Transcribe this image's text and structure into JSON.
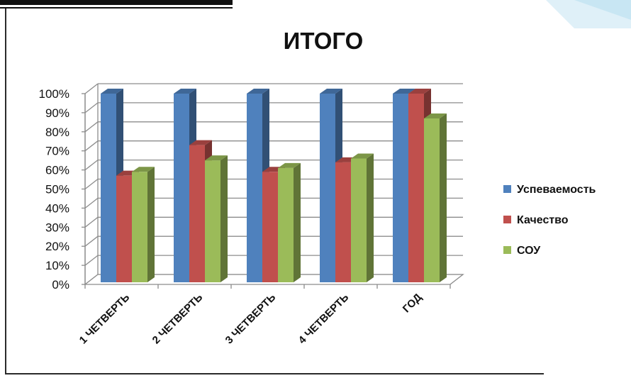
{
  "chart_data": {
    "type": "bar",
    "title": "ИТОГО",
    "categories": [
      "1 ЧЕТВЕРТЬ",
      "2 ЧЕТВЕРТЬ",
      "3 ЧЕТВЕРТЬ",
      "4 ЧЕТВЕРТЬ",
      "ГОД"
    ],
    "series": [
      {
        "name": "Успеваемость",
        "color": "#4F81BD",
        "values": [
          100,
          100,
          100,
          100,
          100
        ]
      },
      {
        "name": "Качество",
        "color": "#C0504D",
        "values": [
          57,
          73,
          59,
          64,
          100
        ]
      },
      {
        "name": "СОУ",
        "color": "#9BBB59",
        "values": [
          59,
          65,
          61,
          66,
          87
        ]
      }
    ],
    "ylim": [
      0,
      100
    ],
    "yticks": [
      "0%",
      "10%",
      "20%",
      "30%",
      "40%",
      "50%",
      "60%",
      "70%",
      "80%",
      "90%",
      "100%"
    ],
    "grid": true,
    "legend_position": "right",
    "style": "3d-clustered-column"
  }
}
